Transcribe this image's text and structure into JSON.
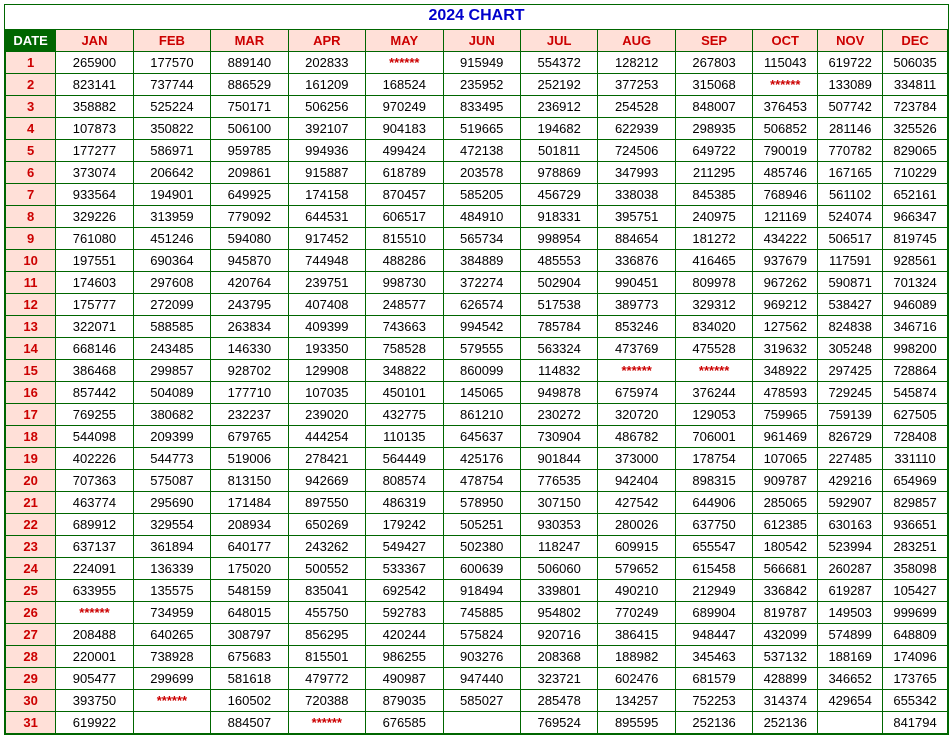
{
  "title": "2024 CHART",
  "title_color": "#0000cc",
  "header_date": "DATE",
  "months": [
    "JAN",
    "FEB",
    "MAR",
    "APR",
    "MAY",
    "JUN",
    "JUL",
    "AUG",
    "SEP",
    "OCT",
    "NOV",
    "DEC"
  ],
  "colors": {
    "border": "#006600",
    "date_head_bg": "#006600",
    "date_head_fg": "#ffffff",
    "month_head_bg": "#ffe0d8",
    "month_head_fg": "#cc0000",
    "day_cell_bg": "#ffe0d8",
    "day_cell_fg": "#cc0000",
    "star_fg": "#cc0000"
  },
  "mask": "******",
  "rows": [
    {
      "day": "1",
      "v": [
        "265900",
        "177570",
        "889140",
        "202833",
        "******",
        "915949",
        "554372",
        "128212",
        "267803",
        "115043",
        "619722",
        "506035"
      ]
    },
    {
      "day": "2",
      "v": [
        "823141",
        "737744",
        "886529",
        "161209",
        "168524",
        "235952",
        "252192",
        "377253",
        "315068",
        "******",
        "133089",
        "334811"
      ]
    },
    {
      "day": "3",
      "v": [
        "358882",
        "525224",
        "750171",
        "506256",
        "970249",
        "833495",
        "236912",
        "254528",
        "848007",
        "376453",
        "507742",
        "723784"
      ]
    },
    {
      "day": "4",
      "v": [
        "107873",
        "350822",
        "506100",
        "392107",
        "904183",
        "519665",
        "194682",
        "622939",
        "298935",
        "506852",
        "281146",
        "325526"
      ]
    },
    {
      "day": "5",
      "v": [
        "177277",
        "586971",
        "959785",
        "994936",
        "499424",
        "472138",
        "501811",
        "724506",
        "649722",
        "790019",
        "770782",
        "829065"
      ]
    },
    {
      "day": "6",
      "v": [
        "373074",
        "206642",
        "209861",
        "915887",
        "618789",
        "203578",
        "978869",
        "347993",
        "211295",
        "485746",
        "167165",
        "710229"
      ]
    },
    {
      "day": "7",
      "v": [
        "933564",
        "194901",
        "649925",
        "174158",
        "870457",
        "585205",
        "456729",
        "338038",
        "845385",
        "768946",
        "561102",
        "652161"
      ]
    },
    {
      "day": "8",
      "v": [
        "329226",
        "313959",
        "779092",
        "644531",
        "606517",
        "484910",
        "918331",
        "395751",
        "240975",
        "121169",
        "524074",
        "966347"
      ]
    },
    {
      "day": "9",
      "v": [
        "761080",
        "451246",
        "594080",
        "917452",
        "815510",
        "565734",
        "998954",
        "884654",
        "181272",
        "434222",
        "506517",
        "819745"
      ]
    },
    {
      "day": "10",
      "v": [
        "197551",
        "690364",
        "945870",
        "744948",
        "488286",
        "384889",
        "485553",
        "336876",
        "416465",
        "937679",
        "117591",
        "928561"
      ]
    },
    {
      "day": "11",
      "v": [
        "174603",
        "297608",
        "420764",
        "239751",
        "998730",
        "372274",
        "502904",
        "990451",
        "809978",
        "967262",
        "590871",
        "701324"
      ]
    },
    {
      "day": "12",
      "v": [
        "175777",
        "272099",
        "243795",
        "407408",
        "248577",
        "626574",
        "517538",
        "389773",
        "329312",
        "969212",
        "538427",
        "946089"
      ]
    },
    {
      "day": "13",
      "v": [
        "322071",
        "588585",
        "263834",
        "409399",
        "743663",
        "994542",
        "785784",
        "853246",
        "834020",
        "127562",
        "824838",
        "346716"
      ]
    },
    {
      "day": "14",
      "v": [
        "668146",
        "243485",
        "146330",
        "193350",
        "758528",
        "579555",
        "563324",
        "473769",
        "475528",
        "319632",
        "305248",
        "998200"
      ]
    },
    {
      "day": "15",
      "v": [
        "386468",
        "299857",
        "928702",
        "129908",
        "348822",
        "860099",
        "114832",
        "******",
        "******",
        "348922",
        "297425",
        "728864"
      ]
    },
    {
      "day": "16",
      "v": [
        "857442",
        "504089",
        "177710",
        "107035",
        "450101",
        "145065",
        "949878",
        "675974",
        "376244",
        "478593",
        "729245",
        "545874"
      ]
    },
    {
      "day": "17",
      "v": [
        "769255",
        "380682",
        "232237",
        "239020",
        "432775",
        "861210",
        "230272",
        "320720",
        "129053",
        "759965",
        "759139",
        "627505"
      ]
    },
    {
      "day": "18",
      "v": [
        "544098",
        "209399",
        "679765",
        "444254",
        "110135",
        "645637",
        "730904",
        "486782",
        "706001",
        "961469",
        "826729",
        "728408"
      ]
    },
    {
      "day": "19",
      "v": [
        "402226",
        "544773",
        "519006",
        "278421",
        "564449",
        "425176",
        "901844",
        "373000",
        "178754",
        "107065",
        "227485",
        "331110"
      ]
    },
    {
      "day": "20",
      "v": [
        "707363",
        "575087",
        "813150",
        "942669",
        "808574",
        "478754",
        "776535",
        "942404",
        "898315",
        "909787",
        "429216",
        "654969"
      ]
    },
    {
      "day": "21",
      "v": [
        "463774",
        "295690",
        "171484",
        "897550",
        "486319",
        "578950",
        "307150",
        "427542",
        "644906",
        "285065",
        "592907",
        "829857"
      ]
    },
    {
      "day": "22",
      "v": [
        "689912",
        "329554",
        "208934",
        "650269",
        "179242",
        "505251",
        "930353",
        "280026",
        "637750",
        "612385",
        "630163",
        "936651"
      ]
    },
    {
      "day": "23",
      "v": [
        "637137",
        "361894",
        "640177",
        "243262",
        "549427",
        "502380",
        "118247",
        "609915",
        "655547",
        "180542",
        "523994",
        "283251"
      ]
    },
    {
      "day": "24",
      "v": [
        "224091",
        "136339",
        "175020",
        "500552",
        "533367",
        "600639",
        "506060",
        "579652",
        "615458",
        "566681",
        "260287",
        "358098"
      ]
    },
    {
      "day": "25",
      "v": [
        "633955",
        "135575",
        "548159",
        "835041",
        "692542",
        "918494",
        "339801",
        "490210",
        "212949",
        "336842",
        "619287",
        "105427"
      ]
    },
    {
      "day": "26",
      "v": [
        "******",
        "734959",
        "648015",
        "455750",
        "592783",
        "745885",
        "954802",
        "770249",
        "689904",
        "819787",
        "149503",
        "999699"
      ]
    },
    {
      "day": "27",
      "v": [
        "208488",
        "640265",
        "308797",
        "856295",
        "420244",
        "575824",
        "920716",
        "386415",
        "948447",
        "432099",
        "574899",
        "648809"
      ]
    },
    {
      "day": "28",
      "v": [
        "220001",
        "738928",
        "675683",
        "815501",
        "986255",
        "903276",
        "208368",
        "188982",
        "345463",
        "537132",
        "188169",
        "174096"
      ]
    },
    {
      "day": "29",
      "v": [
        "905477",
        "299699",
        "581618",
        "479772",
        "490987",
        "947440",
        "323721",
        "602476",
        "681579",
        "428899",
        "346652",
        "173765"
      ]
    },
    {
      "day": "30",
      "v": [
        "393750",
        "******",
        "160502",
        "720388",
        "879035",
        "585027",
        "285478",
        "134257",
        "752253",
        "314374",
        "429654",
        "655342"
      ]
    },
    {
      "day": "31",
      "v": [
        "619922",
        "",
        "884507",
        "******",
        "676585",
        "",
        "769524",
        "895595",
        "252136",
        "252136",
        "",
        "841794"
      ]
    }
  ]
}
